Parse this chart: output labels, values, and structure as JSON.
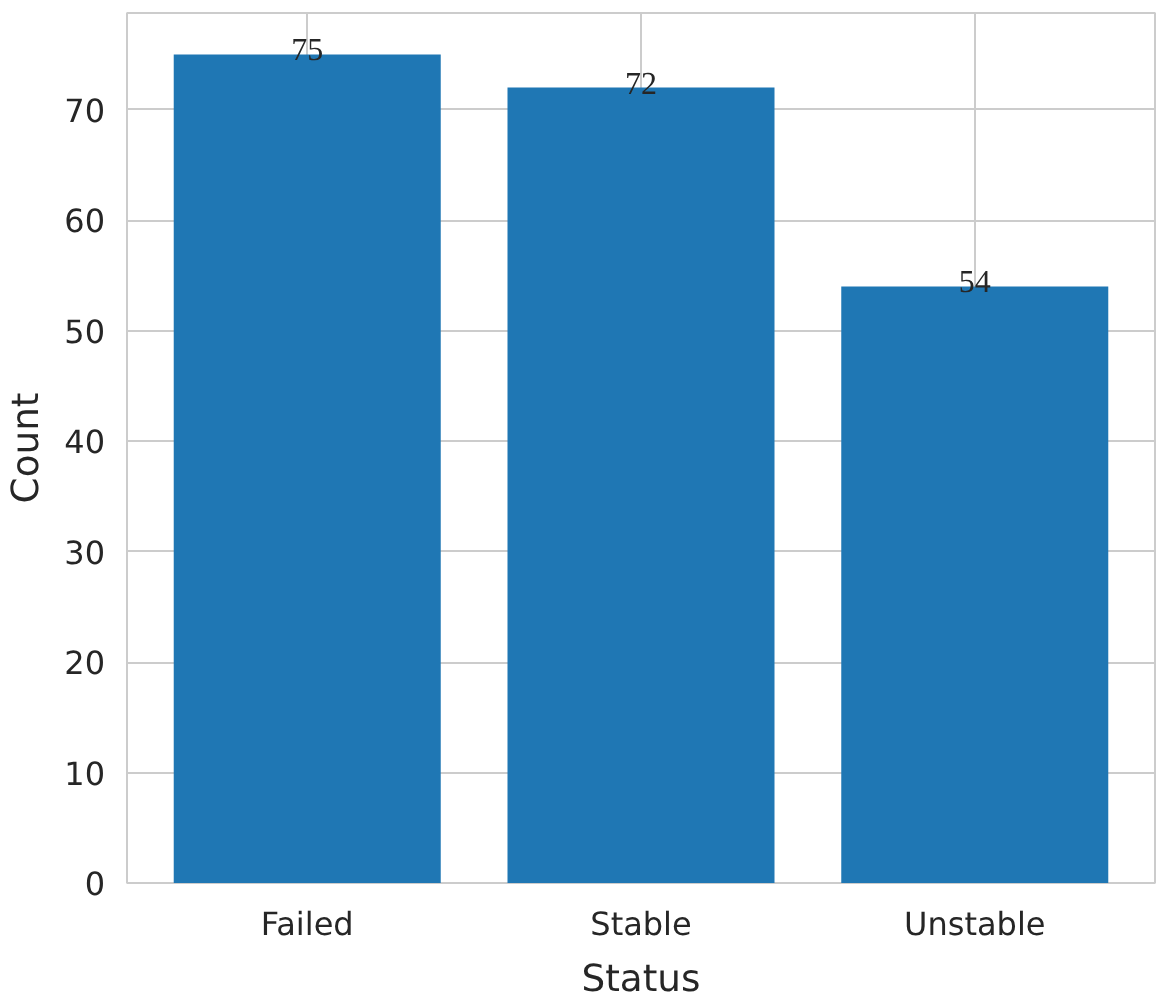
{
  "chart_data": {
    "type": "bar",
    "xlabel": "Status",
    "ylabel": "Count",
    "categories": [
      "Failed",
      "Stable",
      "Unstable"
    ],
    "values": [
      75,
      72,
      54
    ],
    "color": "#1f77b4",
    "ylim": [
      0,
      78.75
    ],
    "yticks": [
      0,
      10,
      20,
      30,
      40,
      50,
      60,
      70
    ],
    "grid": true,
    "data_labels": true
  }
}
